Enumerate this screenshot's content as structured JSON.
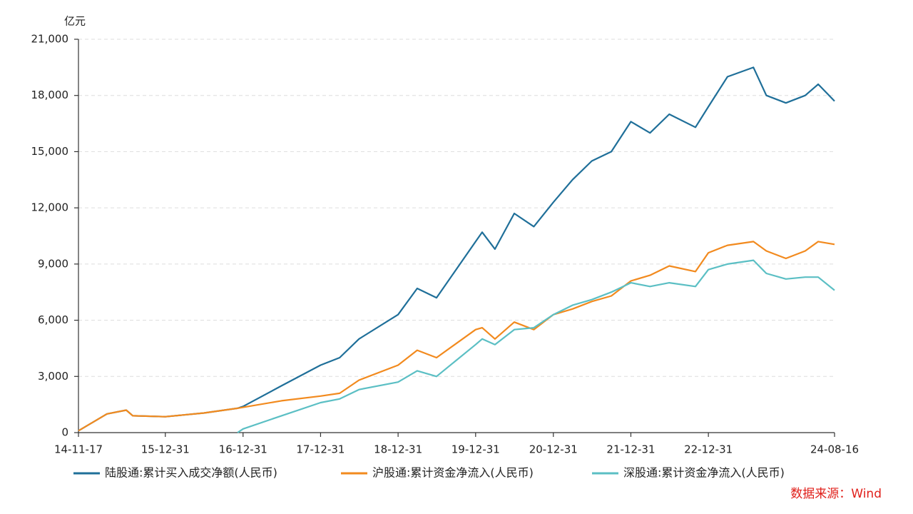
{
  "chart_data": {
    "type": "line",
    "y_label": "亿元",
    "source": "数据来源：Wind",
    "x": [
      "14-11-17",
      "15-03-31",
      "15-06-30",
      "15-07-31",
      "15-12-31",
      "16-06-30",
      "16-12-05",
      "16-12-31",
      "17-06-30",
      "17-12-31",
      "18-03-31",
      "18-06-30",
      "18-12-31",
      "19-03-31",
      "19-06-30",
      "19-12-31",
      "20-01-31",
      "20-03-31",
      "20-06-30",
      "20-09-30",
      "20-12-31",
      "21-03-31",
      "21-06-30",
      "21-09-30",
      "21-12-31",
      "22-03-31",
      "22-06-30",
      "22-10-31",
      "22-12-31",
      "23-03-31",
      "23-07-31",
      "23-09-30",
      "23-12-31",
      "24-03-31",
      "24-05-31",
      "24-08-16"
    ],
    "series": [
      {
        "name": "陆股通:累计买入成交净额(人民币)",
        "color": "#1f6f99",
        "values": [
          100,
          1000,
          1200,
          900,
          850,
          1050,
          1300,
          1400,
          2500,
          3600,
          4000,
          5000,
          6300,
          7700,
          7200,
          10200,
          10700,
          9800,
          11700,
          11000,
          12300,
          13500,
          14500,
          15000,
          16600,
          16000,
          17000,
          16300,
          17400,
          19000,
          19500,
          18000,
          17600,
          18000,
          18600,
          17700
        ]
      },
      {
        "name": "沪股通:累计资金净流入(人民币)",
        "color": "#f28a1e",
        "values": [
          100,
          1000,
          1200,
          900,
          850,
          1050,
          1300,
          1350,
          1700,
          1950,
          2100,
          2800,
          3600,
          4400,
          4000,
          5500,
          5600,
          5000,
          5900,
          5500,
          6300,
          6600,
          7000,
          7300,
          8100,
          8400,
          8900,
          8600,
          9600,
          10000,
          10200,
          9700,
          9300,
          9700,
          10200,
          10050
        ]
      },
      {
        "name": "深股通:累计资金净流入(人民币)",
        "color": "#5bbfc4",
        "values": [
          null,
          null,
          null,
          null,
          null,
          null,
          0,
          200,
          900,
          1600,
          1800,
          2300,
          2700,
          3300,
          3000,
          4700,
          5000,
          4700,
          5500,
          5600,
          6300,
          6800,
          7100,
          7500,
          8000,
          7800,
          8000,
          7800,
          8700,
          9000,
          9200,
          8500,
          8200,
          8300,
          8300,
          7600
        ]
      }
    ],
    "xlim": [
      "14-11-17",
      "24-08-16"
    ],
    "xticks": [
      "14-11-17",
      "15-12-31",
      "16-12-31",
      "17-12-31",
      "18-12-31",
      "19-12-31",
      "20-12-31",
      "21-12-31",
      "22-12-31",
      "24-08-16"
    ],
    "ylim": [
      0,
      21000
    ],
    "yticks": [
      {
        "value": 0,
        "label": "0"
      },
      {
        "value": 3000,
        "label": "3,000"
      },
      {
        "value": 6000,
        "label": "6,000"
      },
      {
        "value": 9000,
        "label": "9,000"
      },
      {
        "value": 12000,
        "label": "12,000"
      },
      {
        "value": 15000,
        "label": "15,000"
      },
      {
        "value": 18000,
        "label": "18,000"
      },
      {
        "value": 21000,
        "label": "21,000"
      }
    ],
    "grid": true,
    "legend": "bottom"
  }
}
